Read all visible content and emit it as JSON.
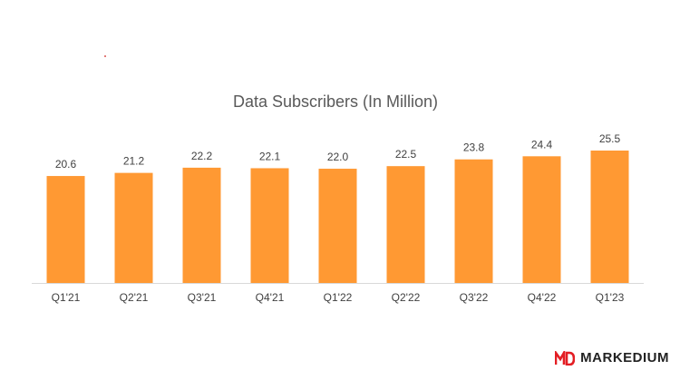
{
  "chart_data": {
    "type": "bar",
    "title": "Data Subscribers (In Million)",
    "categories": [
      "Q1'21",
      "Q2'21",
      "Q3'21",
      "Q4'21",
      "Q1'22",
      "Q2'22",
      "Q3'22",
      "Q4'22",
      "Q1'23"
    ],
    "values": [
      20.6,
      21.2,
      22.2,
      22.1,
      22.0,
      22.5,
      23.8,
      24.4,
      25.5
    ],
    "value_labels": [
      "20.6",
      "21.2",
      "22.2",
      "22.1",
      "22.0",
      "22.5",
      "23.8",
      "24.4",
      "25.5"
    ],
    "ylim": [
      0,
      25.5
    ],
    "grid": false,
    "legend": "none",
    "colors": {
      "bar": "#ff9933",
      "axis": "#d9d9d9"
    }
  },
  "brand": {
    "logo_text": "MARKEDIUM",
    "logo_color": "#e31e24"
  }
}
